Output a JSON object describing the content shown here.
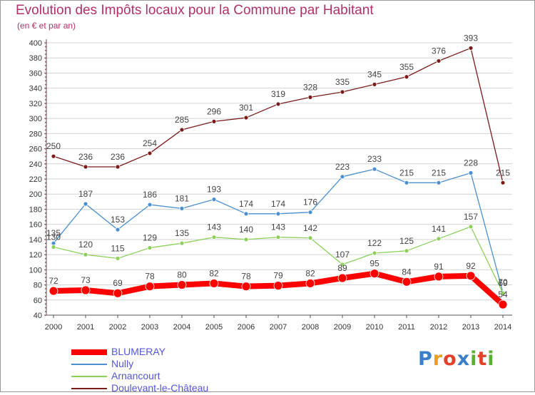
{
  "header": {
    "title": "Evolution des Impôts locaux pour la Commune par Habitant",
    "subtitle": "(en € et par an)"
  },
  "logo": {
    "text": "Proxiti",
    "colors": [
      "#3a7fc8",
      "#e8a020",
      "#e2402a",
      "#3a7fc8",
      "#5ab030",
      "#e2402a",
      "#5ab030"
    ]
  },
  "chart_data": {
    "type": "line",
    "x": [
      "2000",
      "2001",
      "2002",
      "2003",
      "2004",
      "2005",
      "2006",
      "2007",
      "2008",
      "2009",
      "2010",
      "2011",
      "2012",
      "2013",
      "2014"
    ],
    "ylim": [
      40,
      400
    ],
    "yticks": [
      40,
      60,
      80,
      100,
      120,
      140,
      160,
      180,
      200,
      220,
      240,
      260,
      280,
      300,
      320,
      340,
      360,
      380,
      400
    ],
    "grid": true,
    "legend_position": "bottom-left",
    "series": [
      {
        "name": "Doulevant-le-Château",
        "color": "#7a1a1a",
        "values": [
          250,
          236,
          236,
          254,
          285,
          296,
          301,
          319,
          328,
          335,
          345,
          355,
          376,
          393,
          215
        ]
      },
      {
        "name": "Nully",
        "color": "#4a8fd0",
        "values": [
          135,
          187,
          153,
          186,
          181,
          193,
          174,
          174,
          176,
          223,
          233,
          215,
          215,
          228,
          70
        ]
      },
      {
        "name": "Arnancourt",
        "color": "#8cd05a",
        "values": [
          130,
          120,
          115,
          129,
          135,
          143,
          140,
          143,
          142,
          107,
          122,
          125,
          141,
          157,
          69
        ]
      },
      {
        "name": "BLUMERAY",
        "color": "#ff0000",
        "values": [
          72,
          73,
          69,
          78,
          80,
          82,
          78,
          79,
          82,
          89,
          95,
          84,
          91,
          92,
          54
        ]
      }
    ],
    "value_labels": [
      {
        "series": "Doulevant-le-Château",
        "labels": [
          "250",
          "236",
          "236",
          "254",
          "285",
          "296",
          "301",
          "319",
          "328",
          "335",
          "345",
          "355",
          "376",
          "393",
          "215"
        ]
      },
      {
        "series": "Nully",
        "labels": [
          "135",
          "187",
          "153",
          "186",
          "181",
          "193",
          "174",
          "174",
          "176",
          "223",
          "233",
          "215",
          "215",
          "228",
          "70"
        ]
      },
      {
        "series": "Arnancourt",
        "labels": [
          "130",
          "120",
          "115",
          "129",
          "135",
          "143",
          "140",
          "143",
          "142",
          "107",
          "122",
          "125",
          "141",
          "157",
          "69"
        ]
      },
      {
        "series": "BLUMERAY",
        "labels": [
          "72",
          "73",
          "69",
          "78",
          "80",
          "82",
          "78",
          "79",
          "82",
          "89",
          "95",
          "84",
          "91",
          "92",
          "54"
        ]
      }
    ],
    "legend_order": [
      "BLUMERAY",
      "Nully",
      "Arnancourt",
      "Doulevant-le-Château"
    ]
  }
}
